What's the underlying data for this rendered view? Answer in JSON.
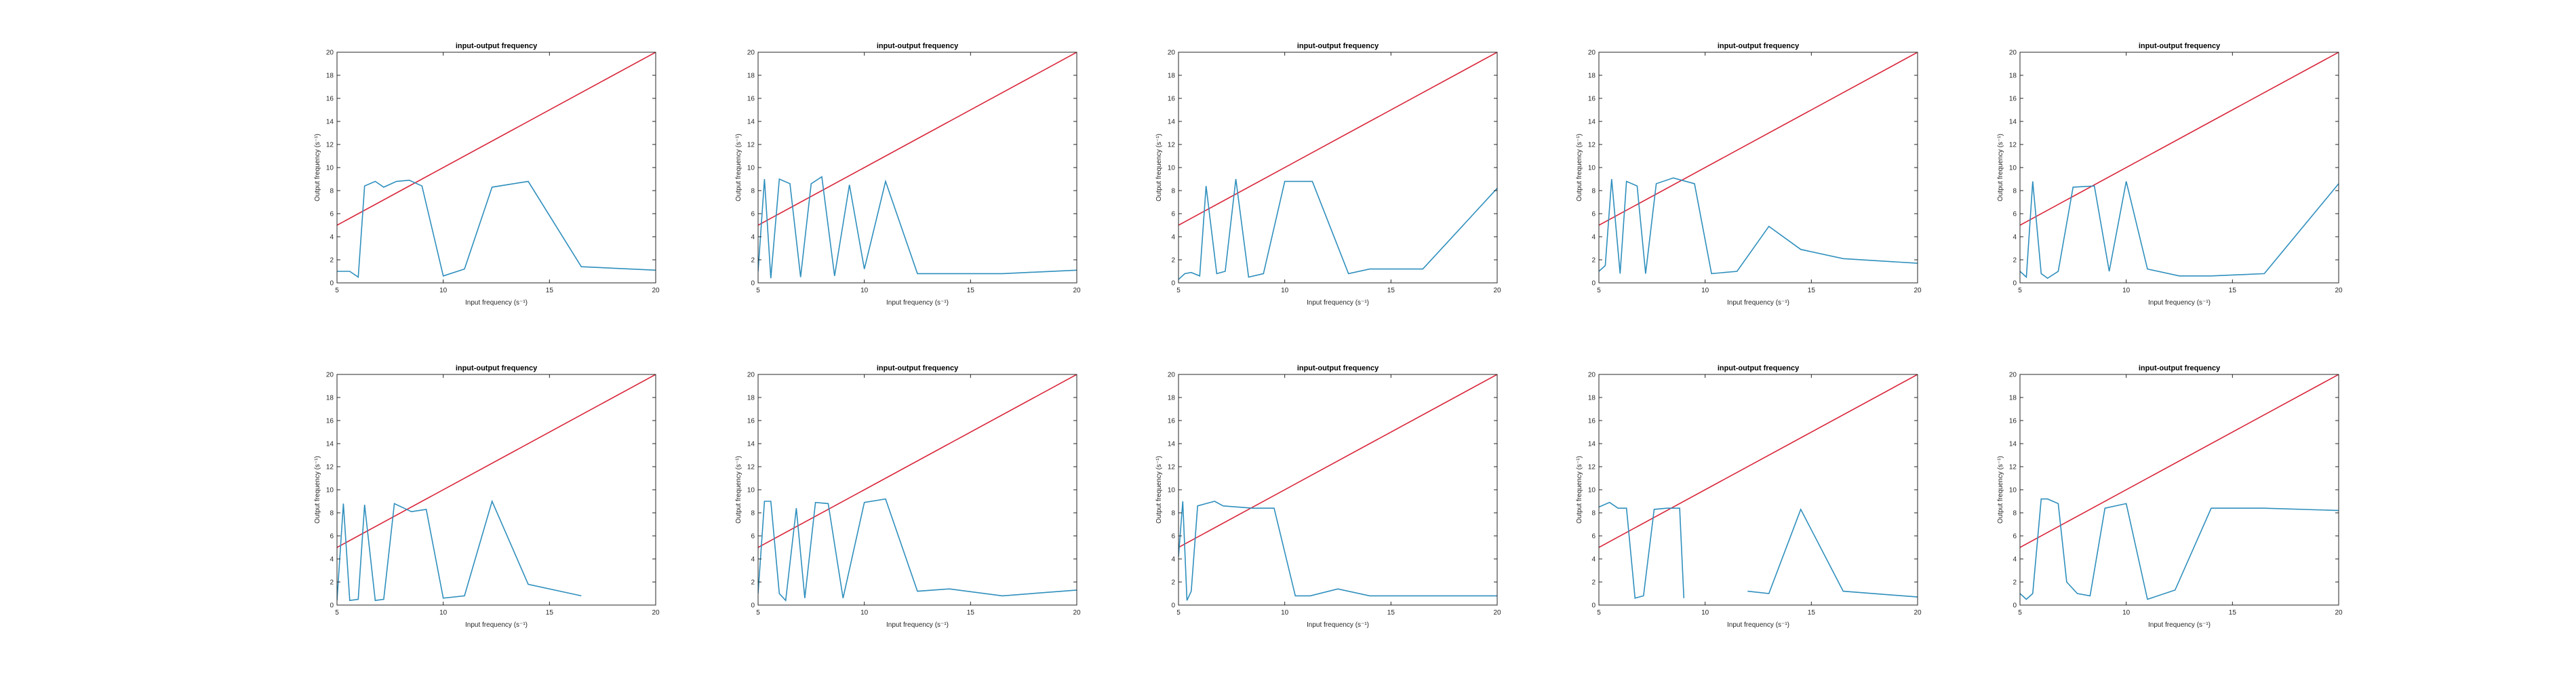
{
  "colors": {
    "reference_line": "#d9253a",
    "output_line": "#2f8fbd",
    "axes": "#262626"
  },
  "chart_data": [
    {
      "type": "line",
      "title": "input-output frequency",
      "xlabel": "Input frequency (s⁻¹)",
      "ylabel": "Output frequency (s⁻¹)",
      "xlim": [
        5,
        20
      ],
      "ylim": [
        0,
        20
      ],
      "xticks": [
        5,
        10,
        15,
        20
      ],
      "yticks": [
        0,
        2,
        4,
        6,
        8,
        10,
        12,
        14,
        16,
        18,
        20
      ],
      "grid": false,
      "series": [
        {
          "color": "#d9253a",
          "x": [
            5,
            20
          ],
          "y": [
            5,
            20
          ]
        },
        {
          "color": "#2f8fbd",
          "x": [
            5,
            5.6,
            6,
            6.3,
            6.8,
            7.2,
            7.8,
            8.4,
            9,
            10,
            11,
            12.3,
            14,
            16.5,
            20
          ],
          "y": [
            1.0,
            1.0,
            0.5,
            8.4,
            8.8,
            8.3,
            8.8,
            8.9,
            8.4,
            0.6,
            1.2,
            8.3,
            8.8,
            1.4,
            1.1
          ]
        }
      ]
    },
    {
      "type": "line",
      "title": "input-output frequency",
      "xlabel": "Input frequency (s⁻¹)",
      "ylabel": "Output frequency (s⁻¹)",
      "xlim": [
        5,
        20
      ],
      "ylim": [
        0,
        20
      ],
      "xticks": [
        5,
        10,
        15,
        20
      ],
      "yticks": [
        0,
        2,
        4,
        6,
        8,
        10,
        12,
        14,
        16,
        18,
        20
      ],
      "grid": false,
      "series": [
        {
          "color": "#d9253a",
          "x": [
            5,
            20
          ],
          "y": [
            5,
            20
          ]
        },
        {
          "color": "#2f8fbd",
          "x": [
            5,
            5.3,
            5.6,
            6,
            6.5,
            7,
            7.5,
            8,
            8.6,
            9.3,
            10,
            11,
            12.5,
            14,
            16.5,
            20
          ],
          "y": [
            1.0,
            9.0,
            0.4,
            9.0,
            8.6,
            0.5,
            8.6,
            9.2,
            0.6,
            8.5,
            1.2,
            8.8,
            0.8,
            0.8,
            0.8,
            1.1
          ]
        }
      ]
    },
    {
      "type": "line",
      "title": "input-output frequency",
      "xlabel": "Input frequency (s⁻¹)",
      "ylabel": "Output frequency (s⁻¹)",
      "xlim": [
        5,
        20
      ],
      "ylim": [
        0,
        20
      ],
      "xticks": [
        5,
        10,
        15,
        20
      ],
      "yticks": [
        0,
        2,
        4,
        6,
        8,
        10,
        12,
        14,
        16,
        18,
        20
      ],
      "grid": false,
      "series": [
        {
          "color": "#d9253a",
          "x": [
            5,
            20
          ],
          "y": [
            5,
            20
          ]
        },
        {
          "color": "#2f8fbd",
          "x": [
            5,
            5.3,
            5.6,
            6,
            6.3,
            6.8,
            7.2,
            7.7,
            8.3,
            9,
            10,
            11.3,
            13,
            14,
            16.5,
            20
          ],
          "y": [
            0.3,
            0.8,
            0.9,
            0.6,
            8.4,
            0.8,
            1.0,
            9.0,
            0.5,
            0.8,
            8.8,
            8.8,
            0.8,
            1.2,
            1.2,
            8.2
          ]
        }
      ]
    },
    {
      "type": "line",
      "title": "input-output frequency",
      "xlabel": "Input frequency (s⁻¹)",
      "ylabel": "Output frequency (s⁻¹)",
      "xlim": [
        5,
        20
      ],
      "ylim": [
        0,
        20
      ],
      "xticks": [
        5,
        10,
        15,
        20
      ],
      "yticks": [
        0,
        2,
        4,
        6,
        8,
        10,
        12,
        14,
        16,
        18,
        20
      ],
      "grid": false,
      "series": [
        {
          "color": "#d9253a",
          "x": [
            5,
            20
          ],
          "y": [
            5,
            20
          ]
        },
        {
          "color": "#2f8fbd",
          "x": [
            5,
            5.3,
            5.6,
            6,
            6.3,
            6.8,
            7.2,
            7.7,
            8.5,
            9.5,
            10.3,
            11.5,
            13,
            14.5,
            16.5,
            20
          ],
          "y": [
            1.0,
            1.5,
            9.0,
            0.8,
            8.8,
            8.4,
            0.8,
            8.6,
            9.1,
            8.6,
            0.8,
            1.0,
            4.9,
            2.9,
            2.1,
            1.7
          ]
        }
      ]
    },
    {
      "type": "line",
      "title": "input-output frequency",
      "xlabel": "Input frequency (s⁻¹)",
      "ylabel": "Output frequency (s⁻¹)",
      "xlim": [
        5,
        20
      ],
      "ylim": [
        0,
        20
      ],
      "xticks": [
        5,
        10,
        15,
        20
      ],
      "yticks": [
        0,
        2,
        4,
        6,
        8,
        10,
        12,
        14,
        16,
        18,
        20
      ],
      "grid": false,
      "series": [
        {
          "color": "#d9253a",
          "x": [
            5,
            20
          ],
          "y": [
            5,
            20
          ]
        },
        {
          "color": "#2f8fbd",
          "x": [
            5,
            5.3,
            5.6,
            6,
            6.3,
            6.8,
            7.5,
            8.5,
            9.2,
            10,
            11,
            12.5,
            14,
            16.5,
            20
          ],
          "y": [
            1.0,
            0.5,
            8.8,
            0.8,
            0.4,
            1.0,
            8.3,
            8.4,
            1.0,
            8.8,
            1.2,
            0.6,
            0.6,
            0.8,
            8.6
          ]
        }
      ]
    },
    {
      "type": "line",
      "title": "input-output frequency",
      "xlabel": "Input frequency (s⁻¹)",
      "ylabel": "Output frequency (s⁻¹)",
      "xlim": [
        5,
        20
      ],
      "ylim": [
        0,
        20
      ],
      "xticks": [
        5,
        10,
        15,
        20
      ],
      "yticks": [
        0,
        2,
        4,
        6,
        8,
        10,
        12,
        14,
        16,
        18,
        20
      ],
      "grid": false,
      "series": [
        {
          "color": "#d9253a",
          "x": [
            5,
            20
          ],
          "y": [
            5,
            20
          ]
        },
        {
          "color": "#2f8fbd",
          "x": [
            5,
            5.3,
            5.6,
            6,
            6.3,
            6.8,
            7.2,
            7.7,
            8.5,
            9.2,
            10,
            11,
            12.3,
            14,
            16.5
          ],
          "y": [
            0.4,
            8.8,
            0.4,
            0.5,
            8.7,
            0.4,
            0.5,
            8.8,
            8.1,
            8.3,
            0.6,
            0.8,
            9.0,
            1.8,
            0.8
          ]
        }
      ]
    },
    {
      "type": "line",
      "title": "input-output frequency",
      "xlabel": "Input frequency (s⁻¹)",
      "ylabel": "Output frequency (s⁻¹)",
      "xlim": [
        5,
        20
      ],
      "ylim": [
        0,
        20
      ],
      "xticks": [
        5,
        10,
        15,
        20
      ],
      "yticks": [
        0,
        2,
        4,
        6,
        8,
        10,
        12,
        14,
        16,
        18,
        20
      ],
      "grid": false,
      "series": [
        {
          "color": "#d9253a",
          "x": [
            5,
            20
          ],
          "y": [
            5,
            20
          ]
        },
        {
          "color": "#2f8fbd",
          "x": [
            5,
            5.3,
            5.6,
            6,
            6.3,
            6.8,
            7.2,
            7.7,
            8.3,
            9,
            10,
            11,
            12.5,
            14,
            16.5,
            20
          ],
          "y": [
            1.0,
            9.0,
            9.0,
            1.0,
            0.4,
            8.4,
            0.6,
            8.9,
            8.8,
            0.6,
            8.9,
            9.2,
            1.2,
            1.4,
            0.8,
            1.3
          ]
        }
      ]
    },
    {
      "type": "line",
      "title": "input-output frequency",
      "xlabel": "Input frequency (s⁻¹)",
      "ylabel": "Output frequency (s⁻¹)",
      "xlim": [
        5,
        20
      ],
      "ylim": [
        0,
        20
      ],
      "xticks": [
        5,
        10,
        15,
        20
      ],
      "yticks": [
        0,
        2,
        4,
        6,
        8,
        10,
        12,
        14,
        16,
        18,
        20
      ],
      "grid": false,
      "series": [
        {
          "color": "#d9253a",
          "x": [
            5,
            20
          ],
          "y": [
            5,
            20
          ]
        },
        {
          "color": "#2f8fbd",
          "x": [
            5,
            5.2,
            5.4,
            5.6,
            5.9,
            6.3,
            6.7,
            7.1,
            8.5,
            9.5,
            10.5,
            11.2,
            12.5,
            14,
            16.5,
            20
          ],
          "y": [
            4.2,
            9.0,
            0.4,
            1.2,
            8.6,
            8.8,
            9.0,
            8.6,
            8.4,
            8.4,
            0.8,
            0.8,
            1.4,
            0.8,
            0.8,
            0.8
          ]
        }
      ]
    },
    {
      "type": "line",
      "title": "input-output frequency",
      "xlabel": "Input frequency (s⁻¹)",
      "ylabel": "Output frequency (s⁻¹)",
      "xlim": [
        5,
        20
      ],
      "ylim": [
        0,
        20
      ],
      "xticks": [
        5,
        10,
        15,
        20
      ],
      "yticks": [
        0,
        2,
        4,
        6,
        8,
        10,
        12,
        14,
        16,
        18,
        20
      ],
      "grid": false,
      "series": [
        {
          "color": "#d9253a",
          "x": [
            5,
            20
          ],
          "y": [
            5,
            20
          ]
        },
        {
          "color": "#2f8fbd",
          "x": [
            5,
            5.5,
            5.9,
            6.3,
            6.7,
            7.1,
            7.6,
            8.2,
            8.8,
            9,
            null,
            12,
            13,
            14.5,
            16.5,
            20
          ],
          "y": [
            8.5,
            8.9,
            8.4,
            8.4,
            0.6,
            0.8,
            8.3,
            8.4,
            8.4,
            0.6,
            null,
            1.2,
            1.0,
            8.3,
            1.2,
            0.7
          ]
        }
      ]
    },
    {
      "type": "line",
      "title": "input-output frequency",
      "xlabel": "Input frequency (s⁻¹)",
      "ylabel": "Output frequency (s⁻¹)",
      "xlim": [
        5,
        20
      ],
      "ylim": [
        0,
        20
      ],
      "xticks": [
        5,
        10,
        15,
        20
      ],
      "yticks": [
        0,
        2,
        4,
        6,
        8,
        10,
        12,
        14,
        16,
        18,
        20
      ],
      "grid": false,
      "series": [
        {
          "color": "#d9253a",
          "x": [
            5,
            20
          ],
          "y": [
            5,
            20
          ]
        },
        {
          "color": "#2f8fbd",
          "x": [
            5,
            5.3,
            5.6,
            6,
            6.3,
            6.8,
            7.2,
            7.7,
            8.3,
            9,
            10,
            11,
            12.3,
            14,
            16.5,
            20
          ],
          "y": [
            1.0,
            0.5,
            1.0,
            9.2,
            9.2,
            8.8,
            2.0,
            1.0,
            0.8,
            8.4,
            8.8,
            0.5,
            1.3,
            8.4,
            8.4,
            8.2
          ]
        }
      ]
    }
  ]
}
